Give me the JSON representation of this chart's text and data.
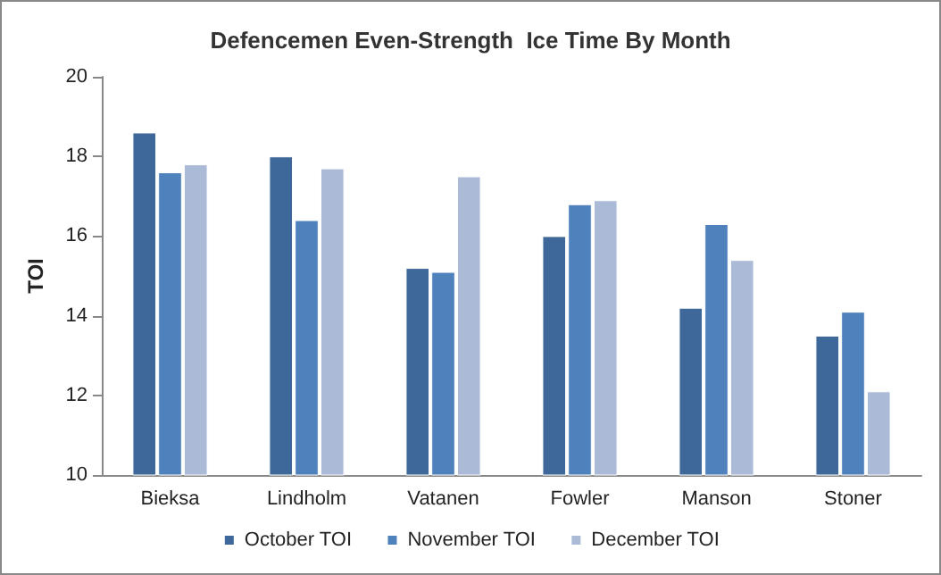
{
  "chart_data": {
    "type": "bar",
    "title": "Defencemen Even-Strength  Ice Time By Month",
    "ylabel": "TOI",
    "categories": [
      "Bieksa",
      "Lindholm",
      "Vatanen",
      "Fowler",
      "Manson",
      "Stoner"
    ],
    "series": [
      {
        "name": "October TOI",
        "color": "#3e6899",
        "values": [
          18.6,
          18.0,
          15.2,
          16.0,
          14.2,
          13.5
        ]
      },
      {
        "name": "November TOI",
        "color": "#4f81bd",
        "values": [
          17.6,
          16.4,
          15.1,
          16.8,
          16.3,
          14.1
        ]
      },
      {
        "name": "December TOI",
        "color": "#aabad7",
        "values": [
          17.8,
          17.7,
          17.5,
          16.9,
          15.4,
          12.1
        ]
      }
    ],
    "ylim": [
      10,
      20
    ],
    "yticks": [
      10,
      12,
      14,
      16,
      18,
      20
    ],
    "grid": false,
    "legend": "bottom"
  }
}
